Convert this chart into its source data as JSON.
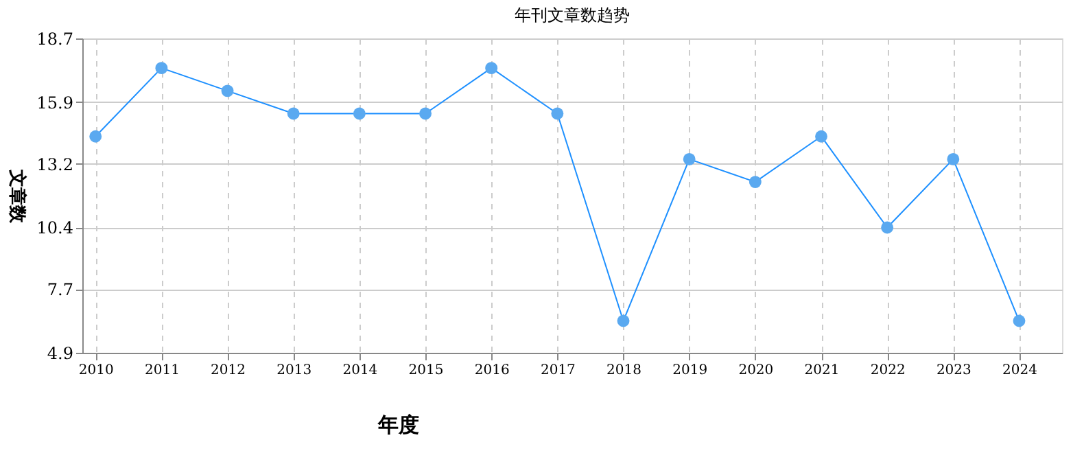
{
  "chart_data": {
    "type": "line",
    "title": "年刊文章数趋势",
    "xlabel": "年度",
    "ylabel": "文章数",
    "categories": [
      "2010",
      "2011",
      "2012",
      "2013",
      "2014",
      "2015",
      "2016",
      "2017",
      "2018",
      "2019",
      "2020",
      "2021",
      "2022",
      "2023",
      "2024"
    ],
    "series": [
      {
        "color": "#1e90ff",
        "values": [
          14.4,
          17.4,
          16.4,
          15.4,
          15.4,
          15.4,
          17.4,
          15.4,
          6.3,
          13.4,
          12.4,
          14.4,
          10.4,
          13.4,
          6.3
        ]
      }
    ],
    "ylim": [
      4.9,
      18.7
    ],
    "yticks": [
      4.9,
      7.7,
      10.4,
      13.2,
      15.9,
      18.7
    ],
    "grid": true,
    "marker": "circle",
    "line_style": "solid"
  }
}
